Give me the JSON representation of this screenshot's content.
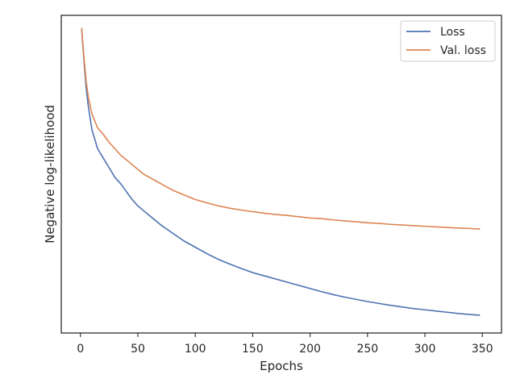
{
  "chart_data": {
    "type": "line",
    "title": "",
    "xlabel": "Epochs",
    "ylabel": "Negative log-likelihood",
    "xlim": [
      -16.7,
      366.7
    ],
    "ylim": [
      0.0,
      1.0
    ],
    "y_ticks_shown": false,
    "x_ticks": [
      0,
      50,
      100,
      150,
      200,
      250,
      300,
      350
    ],
    "grid": false,
    "legend_position": "top-right",
    "series": [
      {
        "name": "Loss",
        "color": "#4c72b0",
        "x": [
          1,
          3,
          5,
          7,
          10,
          15,
          20,
          25,
          30,
          35,
          40,
          45,
          50,
          55,
          60,
          65,
          70,
          80,
          90,
          100,
          110,
          120,
          130,
          140,
          150,
          160,
          170,
          180,
          190,
          200,
          210,
          220,
          230,
          240,
          250,
          260,
          270,
          280,
          290,
          300,
          310,
          320,
          330,
          340,
          348
        ],
        "y": [
          0.96,
          0.86,
          0.77,
          0.71,
          0.64,
          0.58,
          0.55,
          0.52,
          0.49,
          0.47,
          0.445,
          0.42,
          0.4,
          0.385,
          0.37,
          0.355,
          0.34,
          0.315,
          0.29,
          0.27,
          0.25,
          0.232,
          0.217,
          0.203,
          0.19,
          0.18,
          0.17,
          0.16,
          0.15,
          0.14,
          0.13,
          0.121,
          0.113,
          0.106,
          0.099,
          0.093,
          0.087,
          0.082,
          0.077,
          0.073,
          0.069,
          0.065,
          0.061,
          0.058,
          0.056
        ]
      },
      {
        "name": "Val. loss",
        "color": "#dd8452",
        "x": [
          1,
          3,
          5,
          7,
          10,
          15,
          20,
          25,
          30,
          35,
          40,
          45,
          50,
          55,
          60,
          65,
          70,
          80,
          90,
          100,
          110,
          120,
          130,
          140,
          150,
          160,
          170,
          180,
          190,
          200,
          210,
          220,
          230,
          240,
          250,
          260,
          270,
          280,
          290,
          300,
          310,
          320,
          330,
          340,
          348
        ],
        "y": [
          0.96,
          0.87,
          0.79,
          0.74,
          0.69,
          0.645,
          0.625,
          0.6,
          0.58,
          0.56,
          0.545,
          0.53,
          0.515,
          0.5,
          0.49,
          0.48,
          0.47,
          0.45,
          0.435,
          0.42,
          0.41,
          0.4,
          0.393,
          0.387,
          0.382,
          0.377,
          0.373,
          0.37,
          0.366,
          0.362,
          0.36,
          0.356,
          0.353,
          0.35,
          0.347,
          0.345,
          0.342,
          0.34,
          0.338,
          0.336,
          0.334,
          0.332,
          0.33,
          0.329,
          0.327
        ]
      }
    ]
  }
}
